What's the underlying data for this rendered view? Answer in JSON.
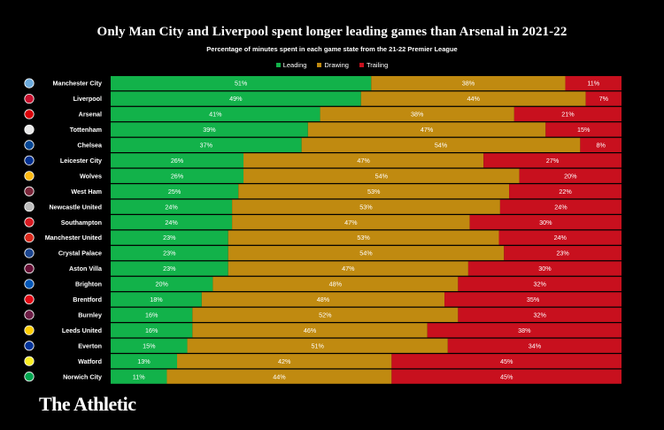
{
  "chart_data": {
    "type": "bar",
    "orientation": "horizontal",
    "stacked": true,
    "title": "Only Man City and Liverpool spent longer leading games than Arsenal in 2021-22",
    "subtitle": "Percentage of minutes spent in each game state from the 21-22 Premier League",
    "legend_position": "top-center",
    "value_suffix": "%",
    "categories": [
      "Manchester City",
      "Liverpool",
      "Arsenal",
      "Tottenham",
      "Chelsea",
      "Leicester City",
      "Wolves",
      "West Ham",
      "Newcastle United",
      "Southampton",
      "Manchester United",
      "Crystal Palace",
      "Aston Villa",
      "Brighton",
      "Brentford",
      "Burnley",
      "Leeds United",
      "Everton",
      "Watford",
      "Norwich City"
    ],
    "series": [
      {
        "name": "Leading",
        "color": "#12b24a",
        "values": [
          51,
          49,
          41,
          39,
          37,
          26,
          26,
          25,
          24,
          24,
          23,
          23,
          23,
          20,
          18,
          16,
          16,
          15,
          13,
          11
        ]
      },
      {
        "name": "Drawing",
        "color": "#c08a10",
        "values": [
          38,
          44,
          38,
          47,
          54,
          47,
          54,
          53,
          53,
          47,
          53,
          54,
          47,
          48,
          48,
          52,
          46,
          51,
          42,
          44
        ]
      },
      {
        "name": "Trailing",
        "color": "#c8101e",
        "values": [
          11,
          7,
          21,
          15,
          8,
          27,
          20,
          22,
          24,
          30,
          24,
          23,
          30,
          32,
          35,
          32,
          38,
          34,
          45,
          45
        ]
      }
    ],
    "team_icons": [
      "manchester-city-crest-icon",
      "liverpool-crest-icon",
      "arsenal-crest-icon",
      "tottenham-crest-icon",
      "chelsea-crest-icon",
      "leicester-city-crest-icon",
      "wolves-crest-icon",
      "west-ham-crest-icon",
      "newcastle-united-crest-icon",
      "southampton-crest-icon",
      "manchester-united-crest-icon",
      "crystal-palace-crest-icon",
      "aston-villa-crest-icon",
      "brighton-crest-icon",
      "brentford-crest-icon",
      "burnley-crest-icon",
      "leeds-united-crest-icon",
      "everton-crest-icon",
      "watford-crest-icon",
      "norwich-city-crest-icon"
    ],
    "team_icon_colors": [
      "#6cabdd",
      "#c8102e",
      "#db0007",
      "#e8e8e8",
      "#034694",
      "#003090",
      "#fdb913",
      "#7a263a",
      "#bbbbbb",
      "#d71920",
      "#da291c",
      "#1b458f",
      "#670e36",
      "#0057b8",
      "#e30613",
      "#6c1d45",
      "#ffcd00",
      "#003399",
      "#fbee23",
      "#00a650"
    ]
  },
  "brand": {
    "text": "The Athletic"
  }
}
